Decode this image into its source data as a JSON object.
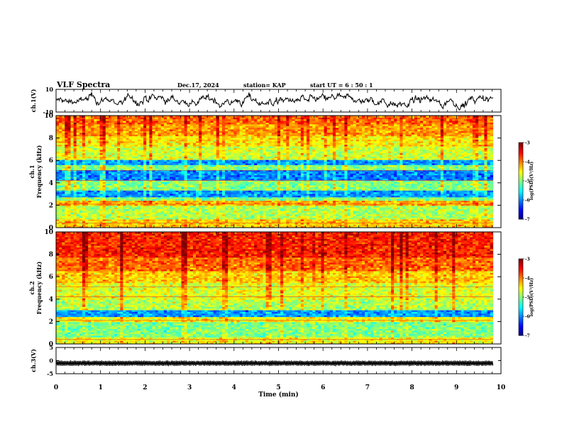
{
  "header": {
    "title": "VLF Spectra",
    "date": "Dec.17, 2024",
    "station": "station= KAP",
    "start_ut": "start  UT =  6 : 50 : 1"
  },
  "chart_data": [
    {
      "type": "line",
      "name": "ch1-waveform",
      "ylabel": "ch.1(V)",
      "ylim": [
        -10,
        10
      ],
      "yticks": [
        "10",
        "-10"
      ],
      "xlim": [
        0,
        10
      ],
      "x_extent_min": [
        0,
        9.82
      ],
      "description_level": "noisy waveform centred near 0 V with amplitude about ±5 V"
    },
    {
      "type": "heatmap",
      "name": "ch1-spectrogram",
      "ylabel": "ch.1\nFrequency  (kHz)",
      "ylim": [
        0,
        10
      ],
      "yticks": [
        "0",
        "2",
        "4",
        "6",
        "8",
        "10"
      ],
      "xlim": [
        0,
        10
      ],
      "x_extent_min": [
        0,
        9.82
      ],
      "colorbar": {
        "label": "log(PSD)(V²/Hz)",
        "range": [
          -7,
          -3
        ],
        "ticks": [
          "-3",
          "-4",
          "-5",
          "-6",
          "-7"
        ]
      },
      "bands_khz_log_psd": [
        {
          "f": [
            0.0,
            0.8
          ],
          "v": -4.3
        },
        {
          "f": [
            0.8,
            2.0
          ],
          "v": -4.8
        },
        {
          "f": [
            2.0,
            2.4
          ],
          "v": -4.2
        },
        {
          "f": [
            2.4,
            2.8
          ],
          "v": -5.0
        },
        {
          "f": [
            2.8,
            3.4
          ],
          "v": -5.9
        },
        {
          "f": [
            3.4,
            4.3
          ],
          "v": -5.0
        },
        {
          "f": [
            4.3,
            5.2
          ],
          "v": -6.0
        },
        {
          "f": [
            5.2,
            5.6
          ],
          "v": -5.0
        },
        {
          "f": [
            5.6,
            6.1
          ],
          "v": -5.9
        },
        {
          "f": [
            6.1,
            7.2
          ],
          "v": -4.7
        },
        {
          "f": [
            7.2,
            8.2
          ],
          "v": -4.4
        },
        {
          "f": [
            8.2,
            9.2
          ],
          "v": -4.1
        },
        {
          "f": [
            9.2,
            10.0
          ],
          "v": -3.9
        }
      ]
    },
    {
      "type": "heatmap",
      "name": "ch2-spectrogram",
      "ylabel": "ch.2\nFrequency  (kHz)",
      "ylim": [
        0,
        10
      ],
      "yticks": [
        "0",
        "2",
        "4",
        "6",
        "8",
        "10"
      ],
      "xlim": [
        0,
        10
      ],
      "x_extent_min": [
        0,
        9.82
      ],
      "colorbar": {
        "label": "log(PSD)(V²/Hz)",
        "range": [
          -7,
          -3
        ],
        "ticks": [
          "-3",
          "-4",
          "-5",
          "-6",
          "-7"
        ]
      },
      "bands_khz_log_psd": [
        {
          "f": [
            0.0,
            0.6
          ],
          "v": -4.5
        },
        {
          "f": [
            0.6,
            2.0
          ],
          "v": -5.0
        },
        {
          "f": [
            2.0,
            2.4
          ],
          "v": -4.5
        },
        {
          "f": [
            2.4,
            3.1
          ],
          "v": -5.9
        },
        {
          "f": [
            3.1,
            4.0
          ],
          "v": -4.8
        },
        {
          "f": [
            4.0,
            5.5
          ],
          "v": -4.6
        },
        {
          "f": [
            5.5,
            6.5
          ],
          "v": -4.3
        },
        {
          "f": [
            6.5,
            7.8
          ],
          "v": -3.9
        },
        {
          "f": [
            7.8,
            10.0
          ],
          "v": -3.6
        }
      ]
    },
    {
      "type": "line",
      "name": "ch3-waveform",
      "ylabel": "ch.3(V)",
      "ylim": [
        -5,
        5
      ],
      "yticks": [
        "5",
        "0",
        "-5"
      ],
      "xlim": [
        0,
        10
      ],
      "xticks": [
        "0",
        "1",
        "2",
        "3",
        "4",
        "5",
        "6",
        "7",
        "8",
        "9",
        "10"
      ],
      "xlabel": "Time  (min)",
      "x_extent_min": [
        0,
        9.82
      ],
      "description_level": "dense oscillation between about 0 V and -2 V"
    }
  ]
}
